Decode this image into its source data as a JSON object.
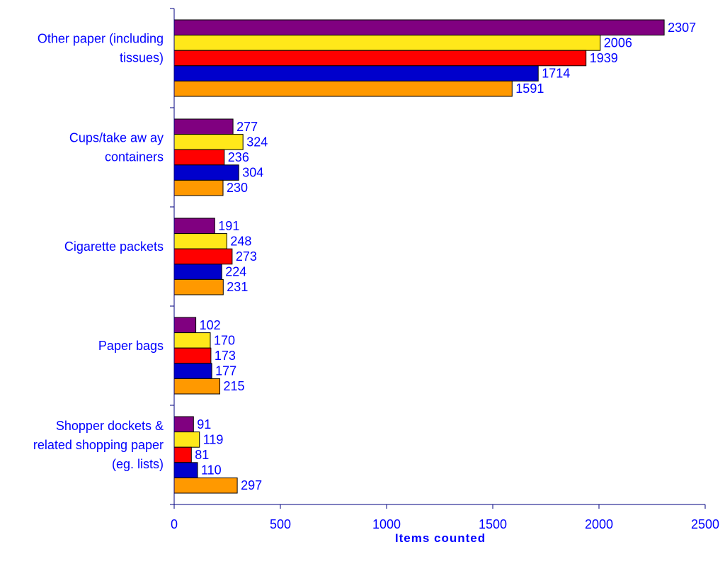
{
  "chart_data": {
    "type": "bar",
    "orientation": "horizontal",
    "categories": [
      "Other paper (including tissues)",
      "Cups/take aw ay containers",
      "Cigarette packets",
      "Paper bags",
      "Shopper dockets & related shopping paper (eg. lists)"
    ],
    "category_label_lines": [
      [
        "Other paper (including",
        "tissues)"
      ],
      [
        "Cups/take aw ay",
        "containers"
      ],
      [
        "Cigarette packets"
      ],
      [
        "Paper bags"
      ],
      [
        "Shopper dockets &",
        "related shopping paper",
        "(eg. lists)"
      ]
    ],
    "series": [
      {
        "color": "#800080",
        "values": [
          2307,
          277,
          191,
          102,
          91
        ]
      },
      {
        "color": "#FFE81A",
        "values": [
          2006,
          324,
          248,
          170,
          119
        ]
      },
      {
        "color": "#FF0000",
        "values": [
          1939,
          236,
          273,
          173,
          81
        ]
      },
      {
        "color": "#0000CC",
        "values": [
          1714,
          304,
          224,
          177,
          110
        ]
      },
      {
        "color": "#FF9900",
        "values": [
          1591,
          230,
          231,
          215,
          297
        ]
      }
    ],
    "xlabel": "Items counted",
    "ylabel": "",
    "title": "",
    "xlim": [
      0,
      2500
    ],
    "xticks": [
      0,
      500,
      1000,
      1500,
      2000,
      2500
    ],
    "grid": false,
    "legend": "none",
    "data_labels": true
  },
  "colors": {
    "text": "#0000FF",
    "axis": "#000080",
    "bar_outline": "#000000"
  }
}
